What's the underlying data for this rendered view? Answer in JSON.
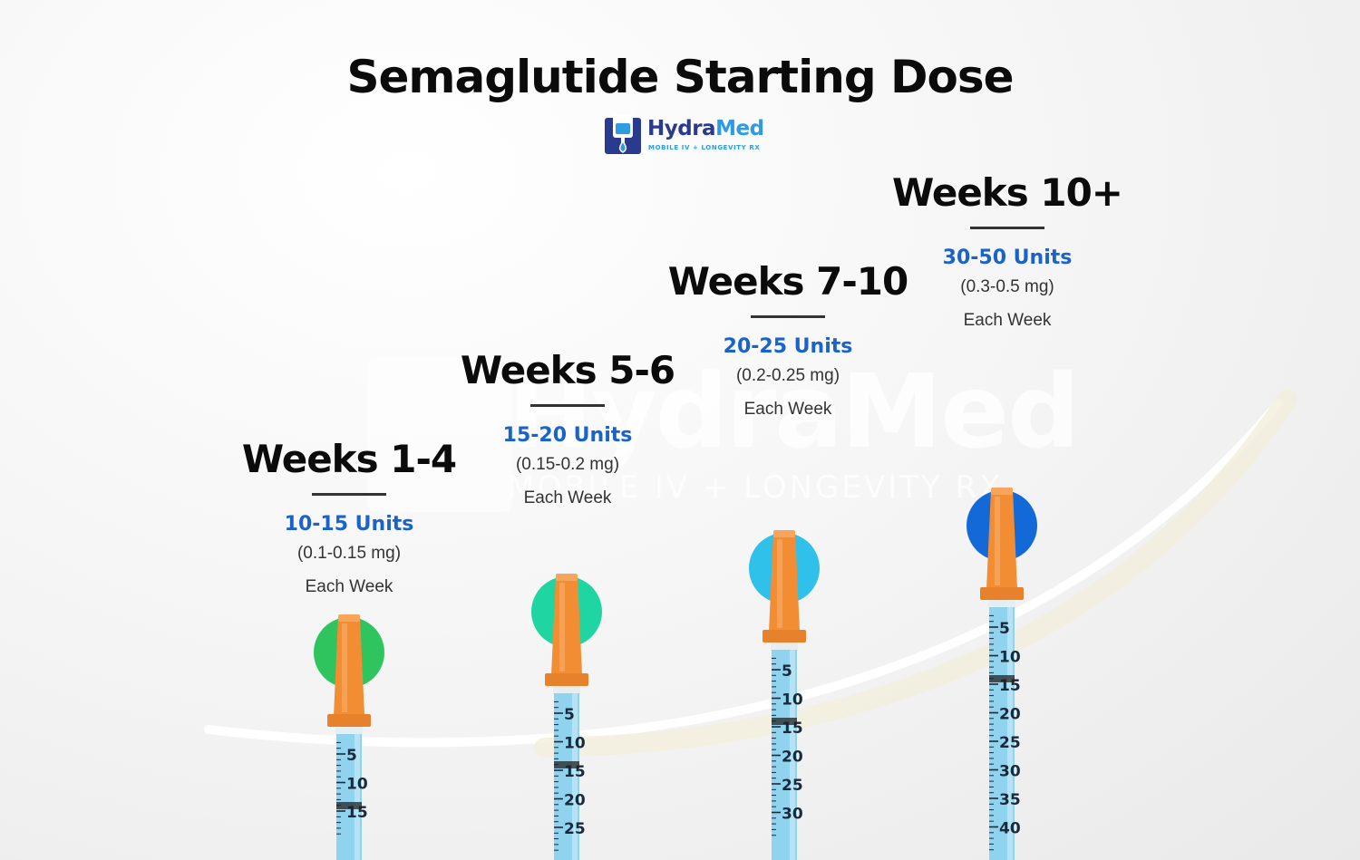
{
  "title": "Semaglutide Starting Dose",
  "logo": {
    "name_part1": "Hydra",
    "name_part2": "Med",
    "tagline": "MOBILE IV + LONGEVITY RX",
    "icon": "iv-bag-drop-icon",
    "colors": {
      "navy": "#2a3a8f",
      "blue": "#2f9be0"
    }
  },
  "watermark": {
    "name": "HydraMed",
    "tagline": "MOBILE IV + LONGEVITY RX"
  },
  "steps": [
    {
      "title": "Weeks 1-4",
      "units": "10-15 Units",
      "mg": "(0.1-0.15 mg)",
      "frequency": "Each Week",
      "cap_color": "#2fc45e"
    },
    {
      "title": "Weeks 5-6",
      "units": "15-20 Units",
      "mg": "(0.15-0.2 mg)",
      "frequency": "Each Week",
      "cap_color": "#1fd6a2"
    },
    {
      "title": "Weeks 7-10",
      "units": "20-25 Units",
      "mg": "(0.2-0.25 mg)",
      "frequency": "Each Week",
      "cap_color": "#30c1ea"
    },
    {
      "title": "Weeks 10+",
      "units": "30-50 Units",
      "mg": "(0.3-0.5 mg)",
      "frequency": "Each Week",
      "cap_color": "#1469d8"
    }
  ],
  "syringes": [
    {
      "scale_labels": [
        "5",
        "10",
        "15"
      ]
    },
    {
      "scale_labels": [
        "5",
        "10",
        "15",
        "20",
        "25"
      ]
    },
    {
      "scale_labels": [
        "5",
        "10",
        "15",
        "20",
        "25",
        "30"
      ]
    },
    {
      "scale_labels": [
        "5",
        "10",
        "15",
        "20",
        "25",
        "30",
        "35",
        "40"
      ]
    }
  ],
  "colors": {
    "units_text": "#1a63c9",
    "needle_cap": "#f28d34",
    "barrel": "#8fd3ef"
  }
}
